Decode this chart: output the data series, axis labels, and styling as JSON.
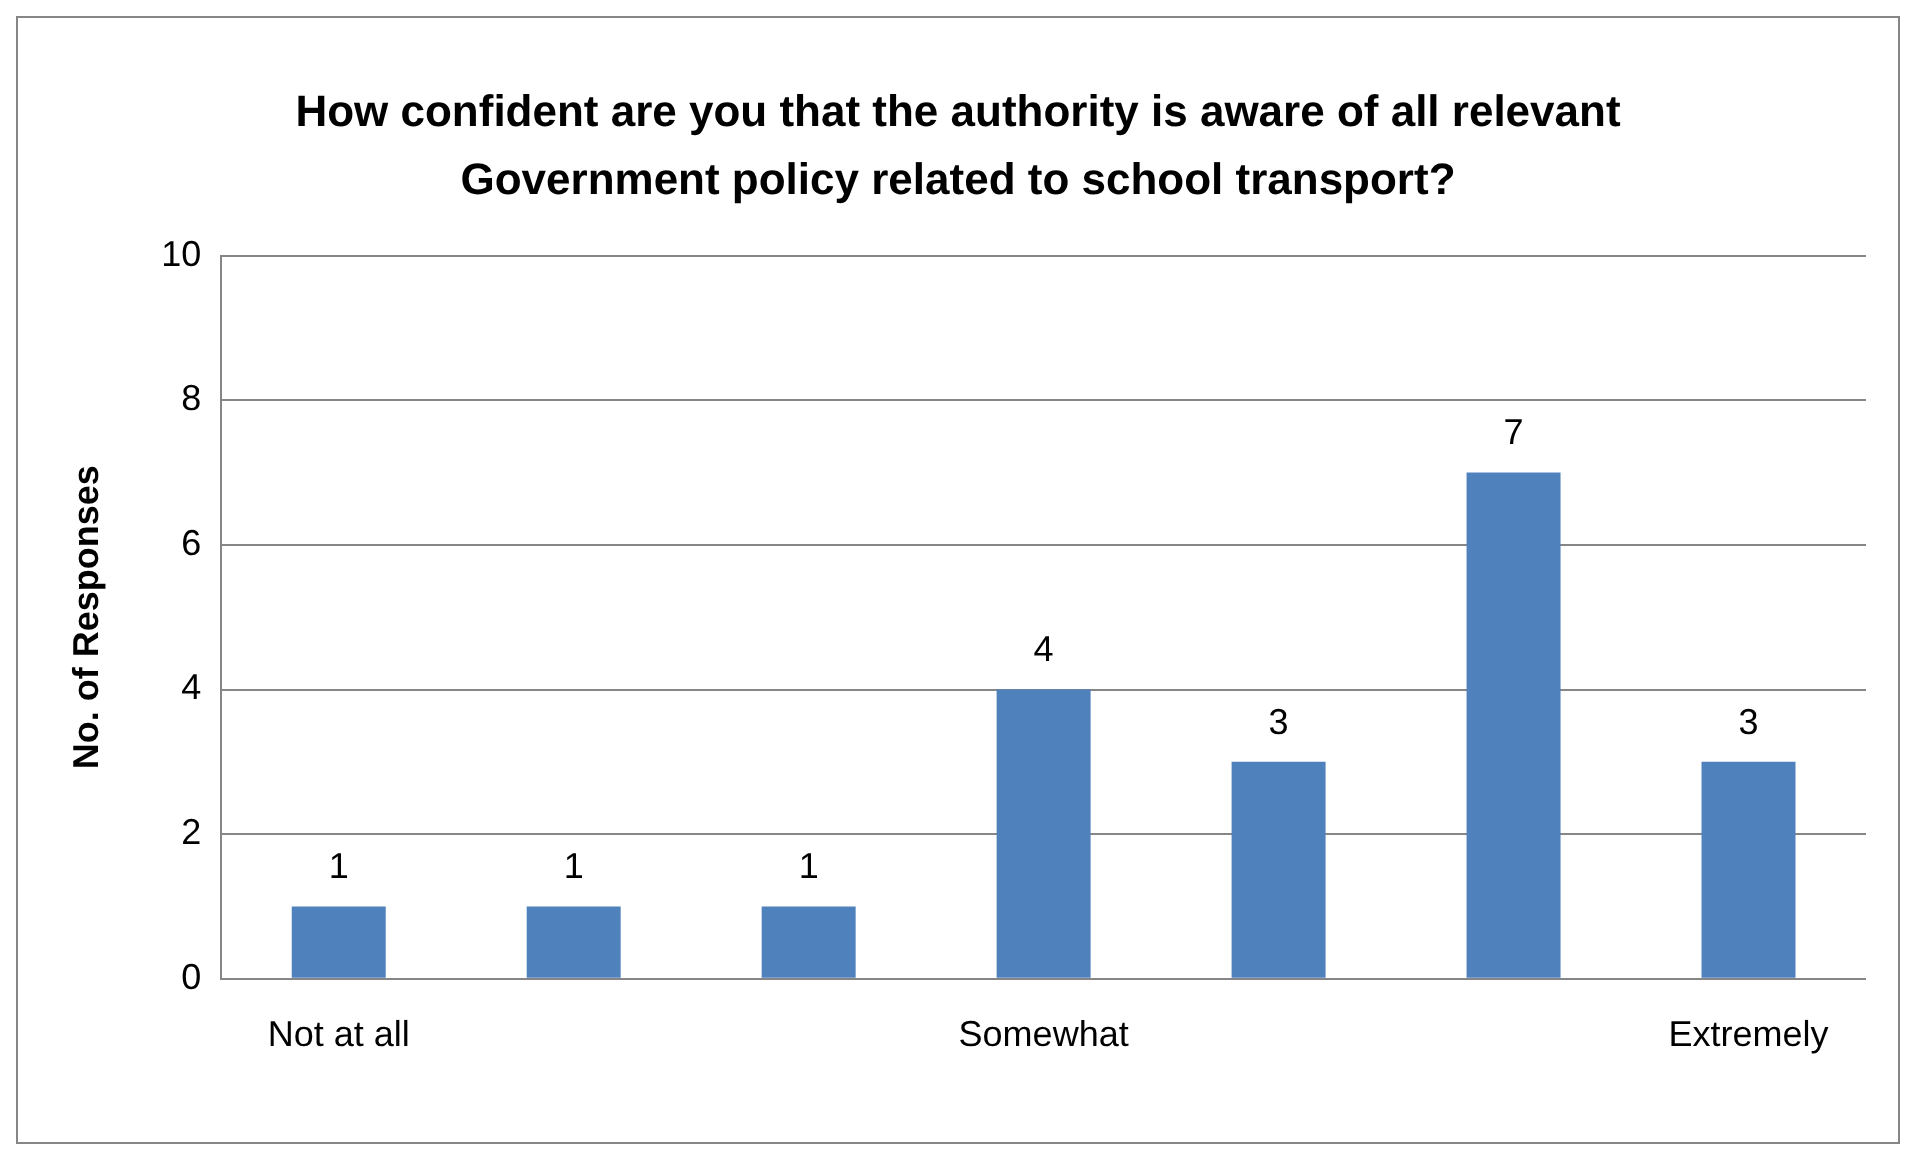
{
  "chart_data": {
    "type": "bar",
    "title": "How confident are you that the authority is aware of all relevant Government policy related to school transport?",
    "ylabel": "No. of Responses",
    "categories": [
      "Not at all",
      null,
      null,
      "Somewhat",
      null,
      null,
      "Extremely"
    ],
    "values": [
      1,
      1,
      1,
      4,
      3,
      7,
      3
    ],
    "color": "#4f81bd",
    "ylim": [
      0,
      10
    ],
    "yticks": [
      0,
      2,
      4,
      6,
      8,
      10
    ],
    "grid": "y",
    "legend": false,
    "data_labels": true
  }
}
